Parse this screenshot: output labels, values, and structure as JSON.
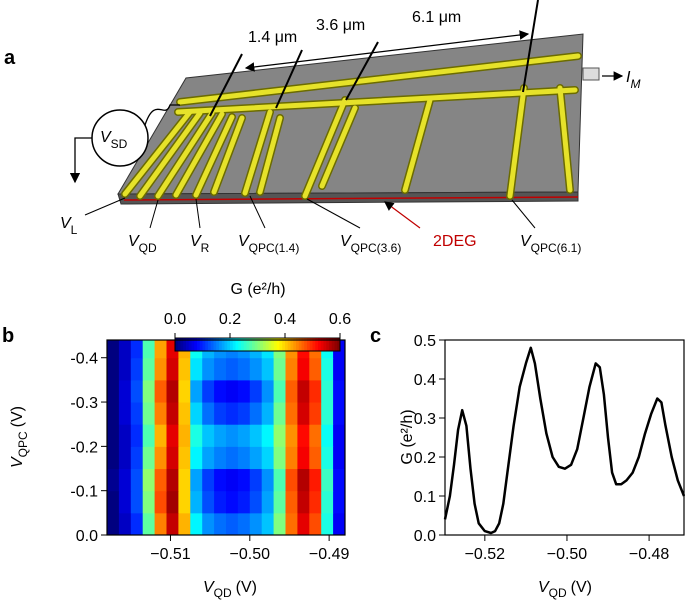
{
  "panel_labels": [
    "a",
    "b",
    "c"
  ],
  "diagram": {
    "spacings": [
      "1.4 μm",
      "3.6 μm",
      "6.1 μm"
    ],
    "current": {
      "text": "I",
      "sub": "M"
    },
    "source": {
      "text": "V",
      "sub": "SD"
    },
    "gates": [
      {
        "text": "V",
        "sub": "L"
      },
      {
        "text": "V",
        "sub": "QD"
      },
      {
        "text": "V",
        "sub": "R"
      },
      {
        "text": "V",
        "sub": "QPC(1.4)"
      },
      {
        "text": "V",
        "sub": "QPC(3.6)"
      },
      {
        "text": "V",
        "sub": "QPC(6.1)"
      }
    ],
    "layer": "2DEG"
  },
  "chart_data": [
    {
      "type": "heatmap",
      "colormap": "jet",
      "colorbar_label": "G (e²/h)",
      "zlim": [
        0,
        0.6
      ],
      "zticks": [
        {
          "value": 0,
          "label": "0.0"
        },
        0.2,
        0.4,
        0.6
      ],
      "xlabel": {
        "text": "V",
        "sub": "QD",
        "unit": "(V)"
      },
      "ylabel": {
        "text": "V",
        "sub": "QPC",
        "unit": "(V)"
      },
      "xlim": [
        -0.518,
        -0.488
      ],
      "ylim": [
        0,
        -0.44
      ],
      "xticks": [
        {
          "value": -0.51,
          "label": "−0.51"
        },
        {
          "value": -0.5,
          "label": "−0.50"
        },
        {
          "value": -0.49,
          "label": "−0.49"
        }
      ],
      "yticks": [
        {
          "value": 0,
          "label": "0.0"
        },
        -0.1,
        -0.2,
        -0.3,
        -0.4
      ],
      "x_edges": [
        -0.518,
        -0.5165,
        -0.515,
        -0.5135,
        -0.512,
        -0.5105,
        -0.509,
        -0.5075,
        -0.506,
        -0.5045,
        -0.503,
        -0.5015,
        -0.5,
        -0.4985,
        -0.497,
        -0.4955,
        -0.494,
        -0.4925,
        -0.491,
        -0.4895,
        -0.488
      ],
      "y_edges": [
        0,
        -0.05,
        -0.1,
        -0.15,
        -0.2,
        -0.25,
        -0.3,
        -0.35,
        -0.4,
        -0.44
      ],
      "z": [
        [
          0.0,
          0.04,
          0.1,
          0.28,
          0.45,
          0.56,
          0.42,
          0.22,
          0.16,
          0.14,
          0.13,
          0.14,
          0.16,
          0.19,
          0.3,
          0.46,
          0.54,
          0.48,
          0.24,
          0.07
        ],
        [
          0.0,
          0.05,
          0.12,
          0.3,
          0.48,
          0.58,
          0.4,
          0.18,
          0.12,
          0.09,
          0.08,
          0.09,
          0.12,
          0.17,
          0.28,
          0.47,
          0.56,
          0.5,
          0.25,
          0.08
        ],
        [
          0.01,
          0.05,
          0.12,
          0.31,
          0.47,
          0.57,
          0.4,
          0.17,
          0.11,
          0.08,
          0.07,
          0.08,
          0.11,
          0.16,
          0.27,
          0.48,
          0.57,
          0.51,
          0.26,
          0.08
        ],
        [
          0.0,
          0.04,
          0.11,
          0.29,
          0.44,
          0.55,
          0.41,
          0.22,
          0.17,
          0.15,
          0.14,
          0.15,
          0.17,
          0.2,
          0.3,
          0.45,
          0.53,
          0.47,
          0.24,
          0.07
        ],
        [
          0.0,
          0.04,
          0.1,
          0.27,
          0.42,
          0.54,
          0.42,
          0.24,
          0.19,
          0.17,
          0.16,
          0.17,
          0.19,
          0.22,
          0.31,
          0.44,
          0.52,
          0.46,
          0.23,
          0.07
        ],
        [
          0.0,
          0.05,
          0.11,
          0.29,
          0.45,
          0.56,
          0.41,
          0.2,
          0.14,
          0.11,
          0.1,
          0.11,
          0.14,
          0.18,
          0.29,
          0.46,
          0.55,
          0.49,
          0.25,
          0.08
        ],
        [
          0.0,
          0.05,
          0.12,
          0.3,
          0.47,
          0.57,
          0.4,
          0.17,
          0.11,
          0.08,
          0.07,
          0.08,
          0.11,
          0.16,
          0.27,
          0.47,
          0.56,
          0.5,
          0.25,
          0.08
        ],
        [
          0.0,
          0.04,
          0.11,
          0.28,
          0.44,
          0.55,
          0.41,
          0.21,
          0.16,
          0.14,
          0.13,
          0.14,
          0.16,
          0.19,
          0.29,
          0.45,
          0.53,
          0.47,
          0.24,
          0.07
        ],
        [
          0.0,
          0.04,
          0.1,
          0.27,
          0.43,
          0.54,
          0.42,
          0.23,
          0.18,
          0.16,
          0.15,
          0.16,
          0.18,
          0.21,
          0.3,
          0.44,
          0.52,
          0.46,
          0.23,
          0.07
        ]
      ]
    },
    {
      "type": "line",
      "color": "#000000",
      "xlabel": {
        "text": "V",
        "sub": "QD",
        "unit": "(V)"
      },
      "ylabel": "G (e²/h)",
      "xlim": [
        -0.5297,
        -0.4715
      ],
      "ylim": [
        0,
        0.5
      ],
      "xticks": [
        {
          "value": -0.52,
          "label": "−0.52"
        },
        {
          "value": -0.5,
          "label": "−0.50"
        },
        {
          "value": -0.48,
          "label": "−0.48"
        }
      ],
      "yticks": [
        {
          "value": 0,
          "label": "0.0"
        },
        0.1,
        0.2,
        0.3,
        0.4,
        0.5
      ],
      "x": [
        -0.5297,
        -0.5285,
        -0.5275,
        -0.5265,
        -0.5255,
        -0.5245,
        -0.5235,
        -0.5225,
        -0.5215,
        -0.52,
        -0.5185,
        -0.5175,
        -0.5165,
        -0.5155,
        -0.5145,
        -0.513,
        -0.5115,
        -0.51,
        -0.5088,
        -0.5078,
        -0.5065,
        -0.505,
        -0.5035,
        -0.502,
        -0.5005,
        -0.499,
        -0.4975,
        -0.496,
        -0.4945,
        -0.493,
        -0.492,
        -0.491,
        -0.49,
        -0.489,
        -0.488,
        -0.4868,
        -0.4855,
        -0.484,
        -0.4825,
        -0.481,
        -0.4795,
        -0.478,
        -0.477,
        -0.476,
        -0.4745,
        -0.473,
        -0.4715
      ],
      "values": [
        0.04,
        0.1,
        0.18,
        0.27,
        0.32,
        0.28,
        0.17,
        0.08,
        0.03,
        0.01,
        0.005,
        0.01,
        0.03,
        0.08,
        0.16,
        0.28,
        0.38,
        0.44,
        0.48,
        0.44,
        0.35,
        0.26,
        0.2,
        0.175,
        0.17,
        0.18,
        0.22,
        0.3,
        0.38,
        0.44,
        0.43,
        0.36,
        0.25,
        0.16,
        0.13,
        0.13,
        0.14,
        0.16,
        0.2,
        0.26,
        0.31,
        0.35,
        0.34,
        0.28,
        0.2,
        0.14,
        0.1
      ]
    }
  ]
}
